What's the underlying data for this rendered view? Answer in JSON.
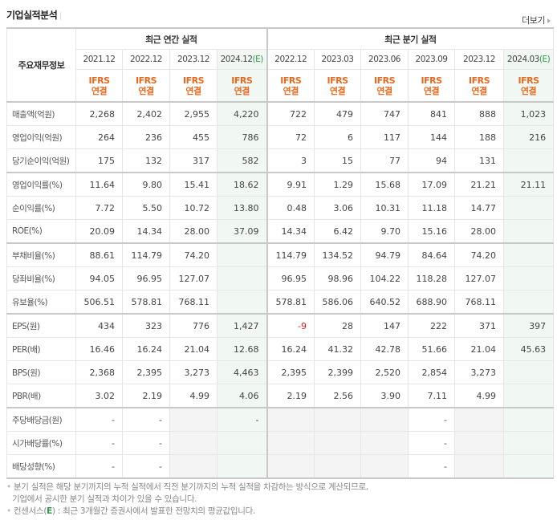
{
  "header": {
    "title": "기업실적분석",
    "more_label": "더보기"
  },
  "table": {
    "row_header_label": "주요재무정보",
    "annual_group_label": "최근 연간 실적",
    "quarter_group_label": "최근 분기 실적",
    "annual_periods": [
      {
        "label": "2021.12",
        "estimate": false
      },
      {
        "label": "2022.12",
        "estimate": false
      },
      {
        "label": "2023.12",
        "estimate": false
      },
      {
        "label": "2024.12",
        "estimate": true,
        "estimate_mark": "(E)"
      }
    ],
    "quarter_periods": [
      {
        "label": "2022.12",
        "estimate": false
      },
      {
        "label": "2023.03",
        "estimate": false
      },
      {
        "label": "2023.06",
        "estimate": false
      },
      {
        "label": "2023.09",
        "estimate": false
      },
      {
        "label": "2023.12",
        "estimate": false
      },
      {
        "label": "2024.03",
        "estimate": true,
        "estimate_mark": "(E)"
      }
    ],
    "basis_line1": "IFRS",
    "basis_line2": "연결",
    "rows": [
      {
        "label": "매출액(억원)",
        "annual": [
          "2,268",
          "2,402",
          "2,955",
          "4,220"
        ],
        "quarter": [
          "722",
          "479",
          "747",
          "841",
          "888",
          "1,023"
        ]
      },
      {
        "label": "영업이익(억원)",
        "annual": [
          "264",
          "236",
          "455",
          "786"
        ],
        "quarter": [
          "72",
          "6",
          "117",
          "144",
          "188",
          "216"
        ]
      },
      {
        "label": "당기순이익(억원)",
        "annual": [
          "175",
          "132",
          "317",
          "582"
        ],
        "quarter": [
          "3",
          "15",
          "77",
          "94",
          "131",
          ""
        ]
      },
      {
        "label": "영업이익률(%)",
        "annual": [
          "11.64",
          "9.80",
          "15.41",
          "18.62"
        ],
        "quarter": [
          "9.91",
          "1.29",
          "15.68",
          "17.09",
          "21.21",
          "21.11"
        ]
      },
      {
        "label": "순이익률(%)",
        "annual": [
          "7.72",
          "5.50",
          "10.72",
          "13.80"
        ],
        "quarter": [
          "0.48",
          "3.06",
          "10.31",
          "11.18",
          "14.77",
          ""
        ]
      },
      {
        "label": "ROE(%)",
        "annual": [
          "20.09",
          "14.34",
          "28.00",
          "37.09"
        ],
        "quarter": [
          "14.34",
          "6.42",
          "9.70",
          "15.16",
          "28.00",
          ""
        ]
      },
      {
        "label": "부채비율(%)",
        "annual": [
          "88.61",
          "114.79",
          "74.20",
          ""
        ],
        "quarter": [
          "114.79",
          "134.52",
          "94.79",
          "84.64",
          "74.20",
          ""
        ]
      },
      {
        "label": "당좌비율(%)",
        "annual": [
          "94.05",
          "96.95",
          "127.07",
          ""
        ],
        "quarter": [
          "96.95",
          "98.96",
          "104.22",
          "118.28",
          "127.07",
          ""
        ]
      },
      {
        "label": "유보율(%)",
        "annual": [
          "506.51",
          "578.81",
          "768.11",
          ""
        ],
        "quarter": [
          "578.81",
          "586.06",
          "640.52",
          "688.90",
          "768.11",
          ""
        ]
      },
      {
        "label": "EPS(원)",
        "annual": [
          "434",
          "323",
          "776",
          "1,427"
        ],
        "quarter": [
          "-9",
          "28",
          "147",
          "222",
          "371",
          "397"
        ]
      },
      {
        "label": "PER(배)",
        "annual": [
          "16.46",
          "16.24",
          "21.04",
          "12.68"
        ],
        "quarter": [
          "16.24",
          "41.32",
          "42.78",
          "51.66",
          "21.04",
          "45.63"
        ]
      },
      {
        "label": "BPS(원)",
        "annual": [
          "2,368",
          "2,395",
          "3,273",
          "4,463"
        ],
        "quarter": [
          "2,395",
          "2,399",
          "2,520",
          "2,854",
          "3,273",
          ""
        ]
      },
      {
        "label": "PBR(배)",
        "annual": [
          "3.02",
          "2.19",
          "4.99",
          "4.06"
        ],
        "quarter": [
          "2.19",
          "2.56",
          "3.90",
          "7.11",
          "4.99",
          ""
        ]
      },
      {
        "label": "주당배당금(원)",
        "annual": [
          "-",
          "-",
          "",
          "-"
        ],
        "quarter": [
          "",
          "",
          "",
          "-",
          "",
          ""
        ]
      },
      {
        "label": "시가배당률(%)",
        "annual": [
          "-",
          "-",
          "",
          ""
        ],
        "quarter": [
          "",
          "",
          "",
          "-",
          "",
          ""
        ]
      },
      {
        "label": "배당성향(%)",
        "annual": [
          "-",
          "-",
          "",
          ""
        ],
        "quarter": [
          "",
          "",
          "",
          "-",
          "",
          ""
        ]
      }
    ]
  },
  "notes": {
    "line1": "분기 실적은 해당 분기까지의 누적 실적에서 직전 분기까지의 누적 실적을 차감하는 방식으로 계산되므로,",
    "line2": "기업에서 공시한 분기 실적과 차이가 있을 수 있습니다.",
    "line3_prefix": "컨센서스(",
    "line3_e": "E",
    "line3_suffix": ") : 최근 3개월간 증권사에서 발표한 전망치의 평균값입니다."
  },
  "colors": {
    "basis_orange": "#e8691f",
    "estimate_green": "#2b9a4a",
    "estimate_bg": "#f1f7f2",
    "negative_red": "#e01b1b"
  }
}
